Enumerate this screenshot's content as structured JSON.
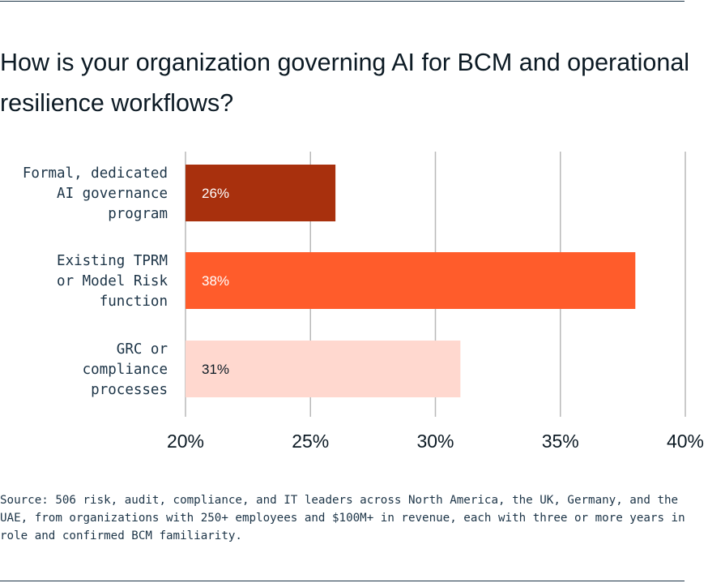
{
  "chart_data": {
    "type": "bar",
    "orientation": "horizontal",
    "title": "How is your organization governing AI for BCM and operational resilience workflows?",
    "categories": [
      [
        "Formal, dedicated",
        "AI governance",
        "program"
      ],
      [
        "Existing TPRM",
        "or Model Risk",
        "function"
      ],
      [
        "GRC or",
        "compliance",
        "processes"
      ]
    ],
    "values": [
      26,
      38,
      31
    ],
    "value_labels": [
      "26%",
      "38%",
      "31%"
    ],
    "bar_colors": [
      "#a8300d",
      "#ff5c2b",
      "#ffd8cf"
    ],
    "label_colors": [
      "#ffffff",
      "#ffffff",
      "#0c1a24"
    ],
    "xlim": [
      20,
      40
    ],
    "xticks": [
      20,
      25,
      30,
      35,
      40
    ],
    "xtick_labels": [
      "20%",
      "25%",
      "30%",
      "35%",
      "40%"
    ],
    "grid": true,
    "grid_color": "#b8b8b8",
    "source": "Source: 506 risk, audit, compliance, and IT leaders across North America, the UK, Germany, and the UAE, from organizations with 250+ employees and $100M+ in revenue, each with three or more years in role and confirmed BCM familiarity."
  }
}
